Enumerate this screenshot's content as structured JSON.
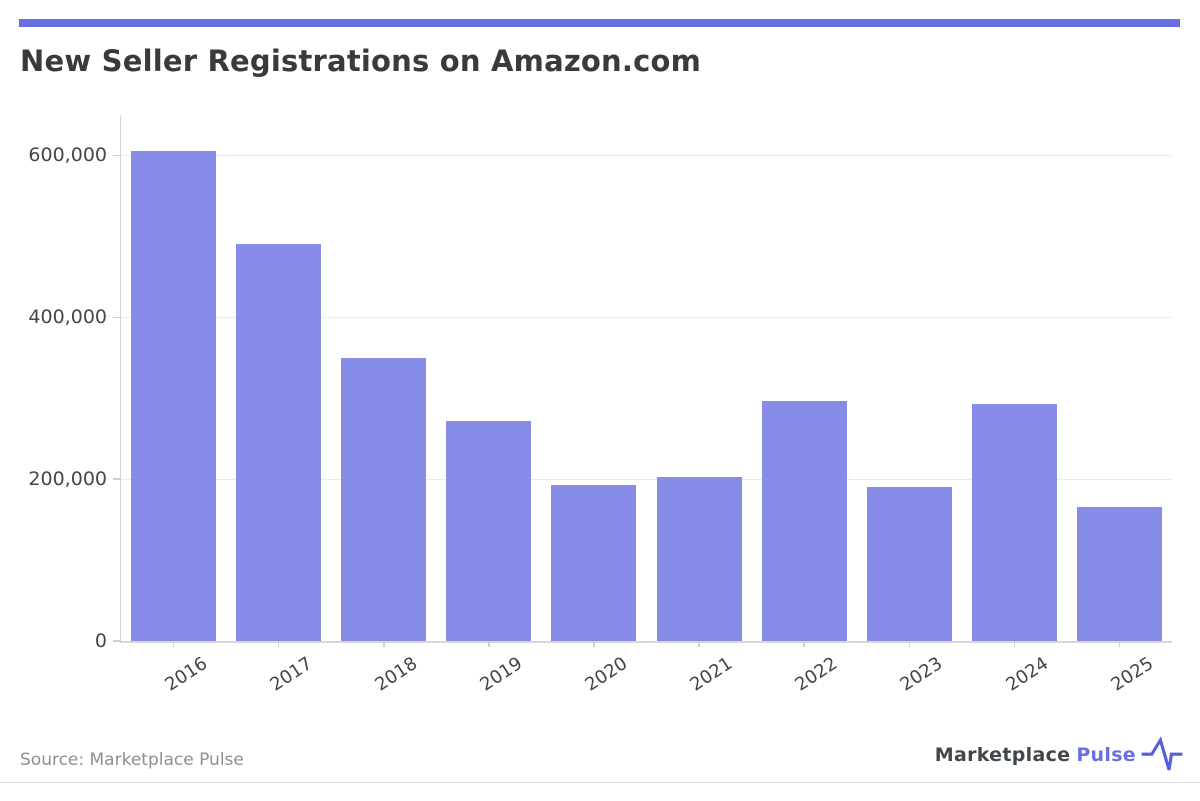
{
  "page": {
    "accent_color": "#6a6fe0",
    "source_note": "Source: Marketplace Pulse"
  },
  "logo": {
    "brand_primary": "Marketplace",
    "brand_accent": "Pulse",
    "brand_primary_color": "#41464b",
    "brand_accent_color": "#6b70e0",
    "icon": "pulse-line-icon",
    "icon_color": "#585edb"
  },
  "chart_data": {
    "type": "bar",
    "title": "New Seller Registrations on Amazon.com",
    "categories": [
      "2016",
      "2017",
      "2018",
      "2019",
      "2020",
      "2021",
      "2022",
      "2023",
      "2024",
      "2025"
    ],
    "values": [
      605000,
      490000,
      350000,
      272000,
      193000,
      203000,
      297000,
      190000,
      293000,
      165000
    ],
    "y_ticks": [
      0,
      200000,
      400000,
      600000
    ],
    "y_tick_labels": [
      "0",
      "200,000",
      "400,000",
      "600,000"
    ],
    "ylim": [
      0,
      650000
    ],
    "xlabel": "",
    "ylabel": "",
    "grid": true,
    "legend": "none",
    "bar_color": "#868ce7",
    "x_label_rotation_deg": -33
  }
}
